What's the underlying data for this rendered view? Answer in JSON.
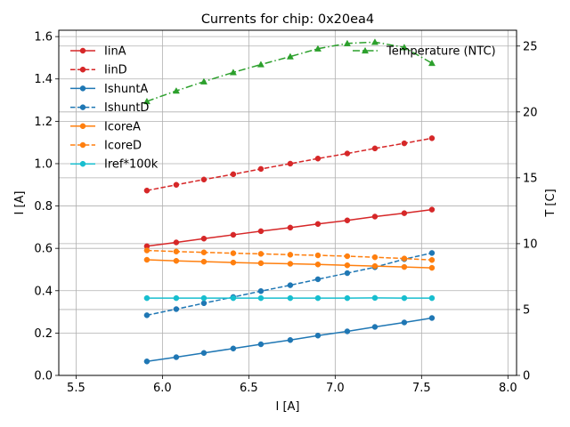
{
  "chart_data": {
    "type": "line",
    "title": "Currents for chip: 0x20ea4",
    "xlabel": "I [A]",
    "ylabel": "I [A]",
    "y2label": "T [C]",
    "xlim": [
      5.4,
      8.05
    ],
    "ylim": [
      0,
      1.63
    ],
    "y2lim": [
      0,
      26.2
    ],
    "xticks": [
      5.5,
      6.0,
      6.5,
      7.0,
      7.5,
      8.0
    ],
    "xtick_labels": [
      "5.5",
      "6.0",
      "6.5",
      "7.0",
      "7.5",
      "8.0"
    ],
    "yticks": [
      0.0,
      0.2,
      0.4,
      0.6,
      0.8,
      1.0,
      1.2,
      1.4,
      1.6
    ],
    "ytick_labels": [
      "0.0",
      "0.2",
      "0.4",
      "0.6",
      "0.8",
      "1.0",
      "1.2",
      "1.4",
      "1.6"
    ],
    "y2ticks": [
      0,
      5,
      10,
      15,
      20,
      25
    ],
    "y2tick_labels": [
      "0",
      "5",
      "10",
      "15",
      "20",
      "25"
    ],
    "grid": true,
    "legend_position": "top-left",
    "legend2_position": "top-right",
    "x": [
      5.91,
      6.08,
      6.24,
      6.41,
      6.57,
      6.74,
      6.9,
      7.07,
      7.23,
      7.4,
      7.56
    ],
    "series": [
      {
        "name": "IinA",
        "color": "#d62728",
        "dash": "solid",
        "marker": "circle",
        "axis": "left",
        "values": [
          0.61,
          0.628,
          0.646,
          0.664,
          0.681,
          0.698,
          0.715,
          0.732,
          0.75,
          0.766,
          0.783
        ]
      },
      {
        "name": "IinD",
        "color": "#d62728",
        "dash": "dashed",
        "marker": "circle",
        "axis": "left",
        "values": [
          0.873,
          0.9,
          0.925,
          0.95,
          0.975,
          1.0,
          1.024,
          1.048,
          1.072,
          1.096,
          1.12
        ]
      },
      {
        "name": "IshuntA",
        "color": "#1f77b4",
        "dash": "solid",
        "marker": "circle",
        "axis": "left",
        "values": [
          0.066,
          0.086,
          0.106,
          0.127,
          0.147,
          0.167,
          0.188,
          0.208,
          0.229,
          0.25,
          0.271
        ]
      },
      {
        "name": "IshuntD",
        "color": "#1f77b4",
        "dash": "dashed",
        "marker": "circle",
        "axis": "left",
        "values": [
          0.284,
          0.313,
          0.341,
          0.37,
          0.398,
          0.426,
          0.454,
          0.483,
          0.511,
          0.549,
          0.578
        ]
      },
      {
        "name": "IcoreA",
        "color": "#ff7f0e",
        "dash": "solid",
        "marker": "circle",
        "axis": "left",
        "values": [
          0.546,
          0.541,
          0.537,
          0.533,
          0.53,
          0.527,
          0.524,
          0.52,
          0.516,
          0.512,
          0.508
        ]
      },
      {
        "name": "IcoreD",
        "color": "#ff7f0e",
        "dash": "dashed",
        "marker": "circle",
        "axis": "left",
        "values": [
          0.59,
          0.585,
          0.581,
          0.577,
          0.574,
          0.57,
          0.567,
          0.563,
          0.558,
          0.552,
          0.545
        ]
      },
      {
        "name": "Iref*100k",
        "color": "#17becf",
        "dash": "solid",
        "marker": "circle",
        "axis": "left",
        "values": [
          0.365,
          0.365,
          0.365,
          0.365,
          0.365,
          0.365,
          0.365,
          0.365,
          0.366,
          0.365,
          0.365
        ]
      },
      {
        "name": "Temperature (NTC)",
        "color": "#2ca02c",
        "dash": "dashdot",
        "marker": "triangle",
        "axis": "right",
        "values": [
          20.8,
          21.6,
          22.3,
          23.0,
          23.6,
          24.2,
          24.8,
          25.2,
          25.3,
          24.9,
          23.7
        ]
      }
    ]
  }
}
